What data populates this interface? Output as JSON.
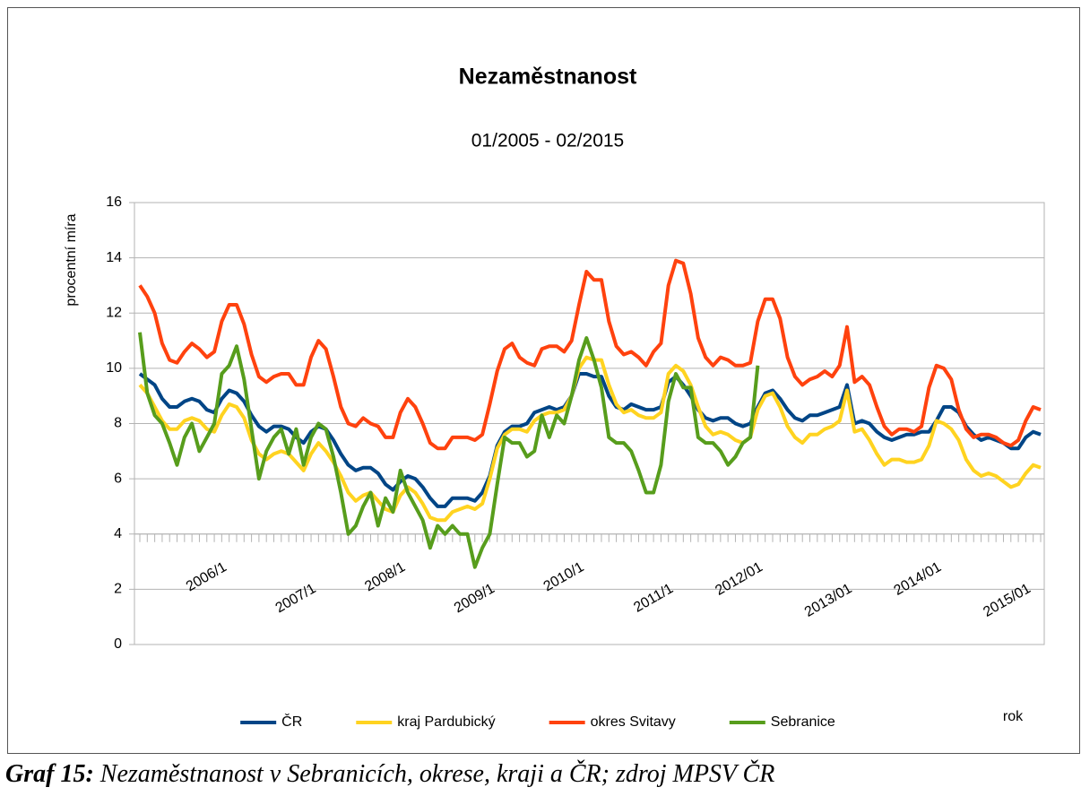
{
  "chart_data": {
    "type": "line",
    "title": "Nezaměstnanost",
    "subtitle": "01/2005 - 02/2015",
    "ylabel": "procentní míra",
    "xlabel": "rok",
    "categories": [
      null,
      null,
      null,
      null,
      null,
      null,
      null,
      null,
      null,
      null,
      null,
      null,
      "2006/1",
      null,
      null,
      null,
      null,
      null,
      null,
      null,
      null,
      null,
      null,
      null,
      "2007/1",
      null,
      null,
      null,
      null,
      null,
      null,
      null,
      null,
      null,
      null,
      null,
      "2008/1",
      null,
      null,
      null,
      null,
      null,
      null,
      null,
      null,
      null,
      null,
      null,
      "2009/1",
      null,
      null,
      null,
      null,
      null,
      null,
      null,
      null,
      null,
      null,
      null,
      "2010/1",
      null,
      null,
      null,
      null,
      null,
      null,
      null,
      null,
      null,
      null,
      null,
      "2011/1",
      null,
      null,
      null,
      null,
      null,
      null,
      null,
      null,
      null,
      null,
      null,
      "2012/01",
      null,
      null,
      null,
      null,
      null,
      null,
      null,
      null,
      null,
      null,
      null,
      "2013/01",
      null,
      null,
      null,
      null,
      null,
      null,
      null,
      null,
      null,
      null,
      null,
      "2014/01",
      null,
      null,
      null,
      null,
      null,
      null,
      null,
      null,
      null,
      null,
      null,
      "2015/01",
      null
    ],
    "series": [
      {
        "name": "ČR",
        "color": "#004586",
        "values": [
          9.8,
          9.6,
          9.4,
          8.9,
          8.6,
          8.6,
          8.8,
          8.9,
          8.8,
          8.5,
          8.4,
          8.9,
          9.2,
          9.1,
          8.8,
          8.3,
          7.9,
          7.7,
          7.9,
          7.9,
          7.8,
          7.5,
          7.3,
          7.7,
          7.9,
          7.8,
          7.4,
          6.9,
          6.5,
          6.3,
          6.4,
          6.4,
          6.2,
          5.8,
          5.6,
          5.9,
          6.1,
          6.0,
          5.7,
          5.3,
          5.0,
          5.0,
          5.3,
          5.3,
          5.3,
          5.2,
          5.5,
          6.1,
          7.2,
          7.7,
          7.9,
          7.9,
          8.0,
          8.4,
          8.5,
          8.6,
          8.5,
          8.6,
          9.0,
          9.8,
          9.8,
          9.7,
          9.7,
          9.0,
          8.6,
          8.5,
          8.7,
          8.6,
          8.5,
          8.5,
          8.6,
          9.5,
          9.7,
          9.4,
          9.0,
          8.5,
          8.2,
          8.1,
          8.2,
          8.2,
          8.0,
          7.9,
          8.0,
          8.6,
          9.1,
          9.2,
          8.9,
          8.5,
          8.2,
          8.1,
          8.3,
          8.3,
          8.4,
          8.5,
          8.6,
          9.4,
          8.0,
          8.1,
          8.0,
          7.7,
          7.5,
          7.4,
          7.5,
          7.6,
          7.6,
          7.7,
          7.7,
          8.1,
          8.6,
          8.6,
          8.4,
          7.9,
          7.6,
          7.4,
          7.5,
          7.4,
          7.3,
          7.1,
          7.1,
          7.5,
          7.7,
          7.6
        ]
      },
      {
        "name": "kraj Pardubický",
        "color": "#ffd320",
        "values": [
          9.4,
          9.1,
          8.6,
          8.1,
          7.8,
          7.8,
          8.1,
          8.2,
          8.1,
          7.8,
          7.7,
          8.3,
          8.7,
          8.6,
          8.2,
          7.4,
          6.9,
          6.7,
          6.9,
          7.0,
          6.9,
          6.6,
          6.3,
          6.9,
          7.3,
          7.0,
          6.6,
          6.1,
          5.5,
          5.2,
          5.4,
          5.5,
          5.2,
          4.9,
          4.8,
          5.4,
          5.7,
          5.5,
          5.1,
          4.6,
          4.5,
          4.5,
          4.8,
          4.9,
          5.0,
          4.9,
          5.1,
          6.0,
          7.1,
          7.6,
          7.8,
          7.8,
          7.7,
          8.1,
          8.3,
          8.4,
          8.4,
          8.5,
          9.0,
          10.0,
          10.4,
          10.3,
          10.3,
          9.4,
          8.7,
          8.4,
          8.5,
          8.3,
          8.2,
          8.2,
          8.4,
          9.8,
          10.1,
          9.9,
          9.4,
          8.6,
          7.9,
          7.6,
          7.7,
          7.6,
          7.4,
          7.3,
          7.5,
          8.5,
          9.0,
          9.1,
          8.6,
          7.9,
          7.5,
          7.3,
          7.6,
          7.6,
          7.8,
          7.9,
          8.1,
          9.2,
          7.7,
          7.8,
          7.4,
          6.9,
          6.5,
          6.7,
          6.7,
          6.6,
          6.6,
          6.7,
          7.2,
          8.1,
          8.0,
          7.8,
          7.4,
          6.7,
          6.3,
          6.1,
          6.2,
          6.1,
          5.9,
          5.7,
          5.8,
          6.2,
          6.5,
          6.4
        ]
      },
      {
        "name": "okres Svitavy",
        "color": "#ff420e",
        "values": [
          13.0,
          12.6,
          12.0,
          10.9,
          10.3,
          10.2,
          10.6,
          10.9,
          10.7,
          10.4,
          10.6,
          11.7,
          12.3,
          12.3,
          11.6,
          10.5,
          9.7,
          9.5,
          9.7,
          9.8,
          9.8,
          9.4,
          9.4,
          10.4,
          11.0,
          10.7,
          9.7,
          8.6,
          8.0,
          7.9,
          8.2,
          8.0,
          7.9,
          7.5,
          7.5,
          8.4,
          8.9,
          8.6,
          8.0,
          7.3,
          7.1,
          7.1,
          7.5,
          7.5,
          7.5,
          7.4,
          7.6,
          8.7,
          9.9,
          10.7,
          10.9,
          10.4,
          10.2,
          10.1,
          10.7,
          10.8,
          10.8,
          10.6,
          11.0,
          12.3,
          13.5,
          13.2,
          13.2,
          11.7,
          10.8,
          10.5,
          10.6,
          10.4,
          10.1,
          10.6,
          10.9,
          13.0,
          13.9,
          13.8,
          12.7,
          11.1,
          10.4,
          10.1,
          10.4,
          10.3,
          10.1,
          10.1,
          10.2,
          11.7,
          12.5,
          12.5,
          11.8,
          10.4,
          9.7,
          9.4,
          9.6,
          9.7,
          9.9,
          9.7,
          10.1,
          11.5,
          9.5,
          9.7,
          9.4,
          8.6,
          7.9,
          7.6,
          7.8,
          7.8,
          7.7,
          7.9,
          9.3,
          10.1,
          10.0,
          9.6,
          8.5,
          7.8,
          7.5,
          7.6,
          7.6,
          7.5,
          7.3,
          7.2,
          7.4,
          8.1,
          8.6,
          8.5
        ]
      },
      {
        "name": "Sebranice",
        "color": "#579d1c",
        "values": [
          11.3,
          9.1,
          8.3,
          8.0,
          7.3,
          6.5,
          7.5,
          8.0,
          7.0,
          7.5,
          8.0,
          9.8,
          10.1,
          10.8,
          9.6,
          7.8,
          6.0,
          7.0,
          7.5,
          7.8,
          6.9,
          7.8,
          6.5,
          7.5,
          8.0,
          7.8,
          6.8,
          5.5,
          4.0,
          4.3,
          5.0,
          5.5,
          4.3,
          5.3,
          4.8,
          6.3,
          5.5,
          5.0,
          4.5,
          3.5,
          4.3,
          4.0,
          4.3,
          4.0,
          4.0,
          2.8,
          3.5,
          4.0,
          5.8,
          7.5,
          7.3,
          7.3,
          6.8,
          7.0,
          8.3,
          7.5,
          8.3,
          8.0,
          9.0,
          10.3,
          11.1,
          10.3,
          9.3,
          7.5,
          7.3,
          7.3,
          7.0,
          6.3,
          5.5,
          5.5,
          6.5,
          8.8,
          9.8,
          9.3,
          9.3,
          7.5,
          7.3,
          7.3,
          7.0,
          6.5,
          6.8,
          7.3,
          7.5,
          10.1,
          null,
          null,
          null,
          null,
          null,
          null,
          null,
          null,
          null,
          null,
          null,
          null,
          null,
          null,
          null,
          null,
          null,
          null,
          null,
          null,
          null,
          null,
          null,
          null,
          null,
          null,
          null,
          null,
          null,
          null,
          null,
          null,
          null,
          null,
          null,
          null,
          null,
          null
        ]
      }
    ],
    "ylim": [
      0,
      16
    ],
    "yticks": [
      0,
      2,
      4,
      6,
      8,
      10,
      12,
      14,
      16
    ],
    "x_axis_at": 4,
    "grid": true,
    "legend": "bottom"
  },
  "caption": {
    "label": "Graf 15:",
    "text": "Nezaměstnanost v Sebranicích, okrese, kraji a ČR; zdroj MPSV ČR"
  }
}
